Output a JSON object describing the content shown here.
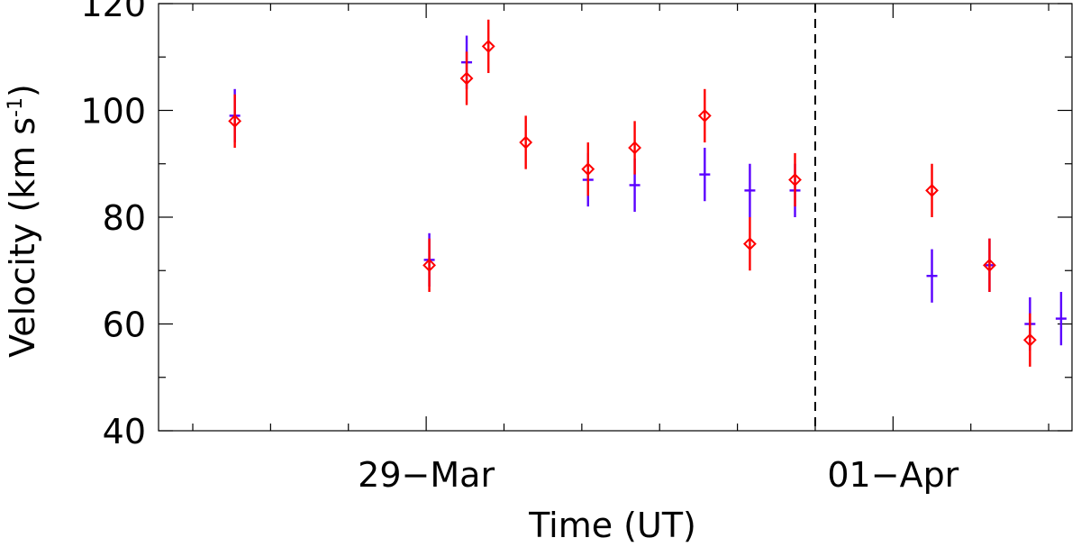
{
  "chart_data": {
    "type": "scatter",
    "xlabel": "Time (UT)",
    "ylabel": "Velocity (km s",
    "ylabel_sup": "-1",
    "ylabel_close": ")",
    "ylim": [
      40,
      120
    ],
    "y_ticks": [
      "40",
      "60",
      "80",
      "100",
      "120"
    ],
    "x_ticks": [
      {
        "label": "29−Mar",
        "t": 0
      },
      {
        "label": "01−Apr",
        "t": 3
      }
    ],
    "xlim": [
      -1.72,
      4.15
    ],
    "event_line_t": 2.5,
    "series": [
      {
        "marker": "plus",
        "color": "#5a00ff",
        "points": [
          {
            "t": -1.23,
            "y": 99,
            "err": 5
          },
          {
            "t": 0.02,
            "y": 72,
            "err": 5
          },
          {
            "t": 0.26,
            "y": 109,
            "err": 5
          },
          {
            "t": 1.04,
            "y": 87,
            "err": 5
          },
          {
            "t": 1.34,
            "y": 86,
            "err": 5
          },
          {
            "t": 1.79,
            "y": 88,
            "err": 5
          },
          {
            "t": 2.08,
            "y": 85,
            "err": 5
          },
          {
            "t": 2.37,
            "y": 85,
            "err": 5
          },
          {
            "t": 3.25,
            "y": 69,
            "err": 5
          },
          {
            "t": 3.62,
            "y": 71,
            "err": 5
          },
          {
            "t": 3.88,
            "y": 60,
            "err": 5
          },
          {
            "t": 4.08,
            "y": 61,
            "err": 5
          }
        ]
      },
      {
        "marker": "diamond",
        "color": "#ff0000",
        "points": [
          {
            "t": -1.23,
            "y": 98,
            "err": 5
          },
          {
            "t": 0.02,
            "y": 71,
            "err": 5
          },
          {
            "t": 0.26,
            "y": 106,
            "err": 5
          },
          {
            "t": 0.4,
            "y": 112,
            "err": 5
          },
          {
            "t": 0.64,
            "y": 94,
            "err": 5
          },
          {
            "t": 1.04,
            "y": 89,
            "err": 5
          },
          {
            "t": 1.34,
            "y": 93,
            "err": 5
          },
          {
            "t": 1.79,
            "y": 99,
            "err": 5
          },
          {
            "t": 2.08,
            "y": 75,
            "err": 5
          },
          {
            "t": 2.37,
            "y": 87,
            "err": 5
          },
          {
            "t": 3.25,
            "y": 85,
            "err": 5
          },
          {
            "t": 3.62,
            "y": 71,
            "err": 5
          },
          {
            "t": 3.88,
            "y": 57,
            "err": 5
          }
        ]
      }
    ]
  }
}
